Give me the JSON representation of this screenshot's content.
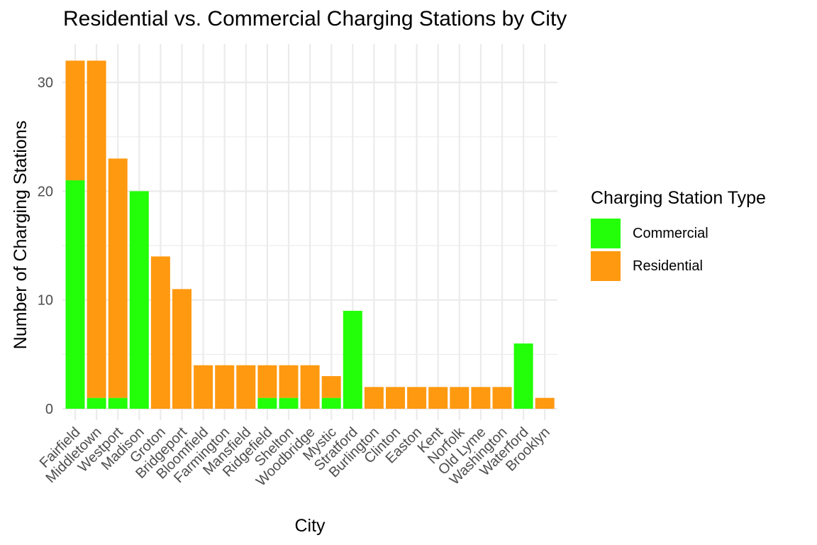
{
  "chart_data": {
    "type": "bar",
    "stacked": true,
    "title": "Residential vs. Commercial Charging Stations by City",
    "xlabel": "City",
    "ylabel": "Number of Charging Stations",
    "ylim": [
      0,
      33
    ],
    "yticks": [
      0,
      10,
      20,
      30
    ],
    "grid": true,
    "legend_position": "right",
    "legend_title": "Charging Station Type",
    "categories": [
      "Fairfield",
      "Middletown",
      "Westport",
      "Madison",
      "Groton",
      "Bridgeport",
      "Bloomfield",
      "Farmington",
      "Mansfield",
      "Ridgefield",
      "Shelton",
      "Woodbridge",
      "Mystic",
      "Stratford",
      "Burlington",
      "Clinton",
      "Easton",
      "Kent",
      "Norfolk",
      "Old Lyme",
      "Washington",
      "Waterford",
      "Brooklyn"
    ],
    "series": [
      {
        "name": "Commercial",
        "color": "#22ff08",
        "values": [
          21,
          1,
          1,
          20,
          0,
          0,
          0,
          0,
          0,
          1,
          1,
          0,
          1,
          9,
          0,
          0,
          0,
          0,
          0,
          0,
          0,
          6,
          0
        ]
      },
      {
        "name": "Residential",
        "color": "#ff9910",
        "values": [
          11,
          31,
          22,
          0,
          14,
          11,
          4,
          4,
          4,
          3,
          3,
          4,
          2,
          0,
          2,
          2,
          2,
          2,
          2,
          2,
          2,
          0,
          1
        ]
      }
    ]
  }
}
